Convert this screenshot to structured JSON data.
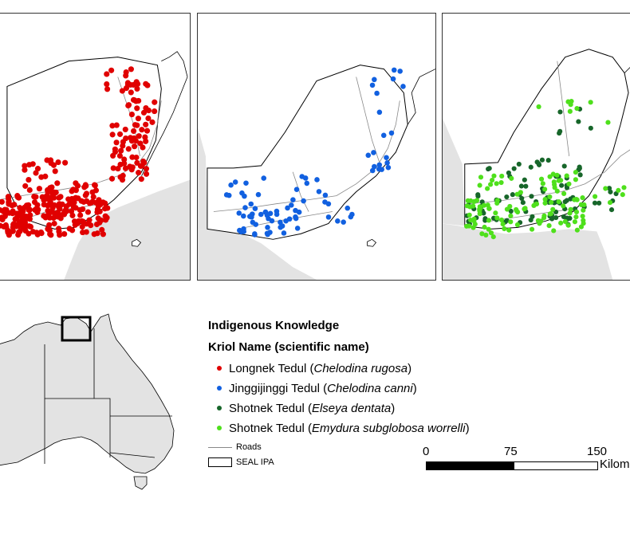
{
  "legend": {
    "title": "Indigenous Knowledge",
    "subtitle": "Kriol Name (scientific name)",
    "items": [
      {
        "name": "Longnek Tedul (",
        "sci": "Chelodina rugosa",
        "close": ")",
        "color": "#e00000"
      },
      {
        "name": "Jinggijinggi Tedul (",
        "sci": "Chelodina canni",
        "close": ")",
        "color": "#1160e0"
      },
      {
        "name": "Shotnek Tedul (",
        "sci": "Elseya dentata",
        "close": ")",
        "color": "#17662a"
      },
      {
        "name": "Shotnek Tedul (",
        "sci": "Emydura subglobosa worrelli",
        "close": ")",
        "color": "#4fe01c"
      }
    ],
    "roads_label": "Roads",
    "ipa_label": "SEAL IPA"
  },
  "scale": {
    "ticks": [
      "0",
      "75",
      "150"
    ],
    "unit": "Kilom"
  },
  "colors": {
    "sea": "#e3e3e3",
    "land": "#ffffff",
    "roads": "#888888"
  }
}
